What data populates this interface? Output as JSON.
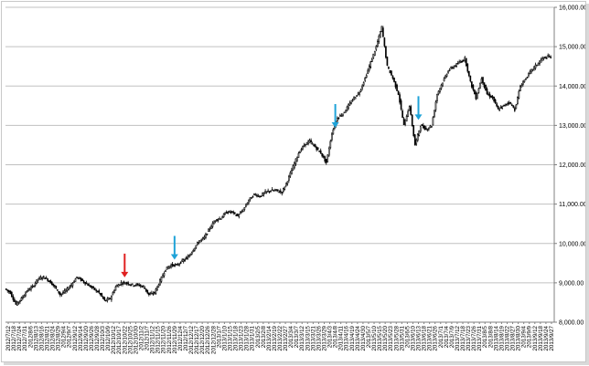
{
  "chart_data": {
    "type": "candlestick",
    "title": "",
    "xlabel": "",
    "ylabel": "",
    "ylim": [
      8000,
      16000
    ],
    "y_axis_position": "right",
    "y_ticks": [
      "8,000.00",
      "9,000.00",
      "10,000.00",
      "11,000.00",
      "12,000.00",
      "13,000.00",
      "14,000.00",
      "15,000.00",
      "16,000.00"
    ],
    "y_tick_values": [
      8000,
      9000,
      10000,
      11000,
      12000,
      13000,
      14000,
      15000,
      16000
    ],
    "grid": "horizontal",
    "x_tick_labels": [
      "2012/7/12",
      "2012/7/18",
      "2012/7/24",
      "2012/7/31",
      "2012/8/6",
      "2012/8/13",
      "2012/8/16",
      "2012/8/21",
      "2012/8/24",
      "2012/8/29",
      "2012/9/4",
      "2012/9/7",
      "2012/9/12",
      "2012/9/14",
      "2012/9/20",
      "2012/9/26",
      "2012/9/28",
      "2012/10/3",
      "2012/10/9",
      "2012/10/12",
      "2012/10/17",
      "2012/10/22",
      "2012/10/25",
      "2012/10/30",
      "2012/11/2",
      "2012/11/7",
      "2012/11/12",
      "2012/11/15",
      "2012/11/20",
      "2012/11/26",
      "2012/11/29",
      "2012/12/4",
      "2012/12/7",
      "2012/12/12",
      "2012/12/17",
      "2012/12/20",
      "2012/12/26",
      "2012/12/28",
      "2013/1/7",
      "2013/1/10",
      "2013/1/15",
      "2013/1/18",
      "2013/1/23",
      "2013/1/28",
      "2013/1/31",
      "2013/2/5",
      "2013/2/8",
      "2013/2/14",
      "2013/2/19",
      "2013/2/22",
      "2013/2/27",
      "2013/3/4",
      "2013/3/7",
      "2013/3/12",
      "2013/3/15",
      "2013/3/21",
      "2013/3/26",
      "2013/3/29",
      "2013/4/3",
      "2013/4/8",
      "2013/4/11",
      "2013/4/16",
      "2013/4/19",
      "2013/4/24",
      "2013/4/30",
      "2013/5/7",
      "2013/5/10",
      "2013/5/15",
      "2013/5/20",
      "2013/5/23",
      "2013/5/28",
      "2013/5/31",
      "2013/6/5",
      "2013/6/10",
      "2013/6/13",
      "2013/6/18",
      "2013/6/21",
      "2013/6/26",
      "2013/7/1",
      "2013/7/4",
      "2013/7/9",
      "2013/7/12",
      "2013/7/18",
      "2013/7/23",
      "2013/7/26",
      "2013/7/31",
      "2013/8/5",
      "2013/8/8",
      "2013/8/14",
      "2013/8/19",
      "2013/8/22",
      "2013/8/27",
      "2013/8/30",
      "2013/9/4",
      "2013/9/9",
      "2013/9/12",
      "2013/9/18",
      "2013/9/24",
      "2013/9/27"
    ],
    "close_path": [
      [
        "2012/7/12",
        8850
      ],
      [
        "2012/7/18",
        8750
      ],
      [
        "2012/7/24",
        8450
      ],
      [
        "2012/7/31",
        8600
      ],
      [
        "2012/8/6",
        8800
      ],
      [
        "2012/8/13",
        8900
      ],
      [
        "2012/8/16",
        9100
      ],
      [
        "2012/8/21",
        9150
      ],
      [
        "2012/8/24",
        9050
      ],
      [
        "2012/8/29",
        8900
      ],
      [
        "2012/9/4",
        8700
      ],
      [
        "2012/9/7",
        8800
      ],
      [
        "2012/9/12",
        8950
      ],
      [
        "2012/9/14",
        9150
      ],
      [
        "2012/9/20",
        9050
      ],
      [
        "2012/9/26",
        8950
      ],
      [
        "2012/9/28",
        8850
      ],
      [
        "2012/10/3",
        8750
      ],
      [
        "2012/10/9",
        8550
      ],
      [
        "2012/10/12",
        8600
      ],
      [
        "2012/10/17",
        8900
      ],
      [
        "2012/10/22",
        9000
      ],
      [
        "2012/10/25",
        9000
      ],
      [
        "2012/10/30",
        8950
      ],
      [
        "2012/11/2",
        8950
      ],
      [
        "2012/11/7",
        8900
      ],
      [
        "2012/11/12",
        8700
      ],
      [
        "2012/11/15",
        8750
      ],
      [
        "2012/11/20",
        9050
      ],
      [
        "2012/11/26",
        9350
      ],
      [
        "2012/11/29",
        9450
      ],
      [
        "2012/12/4",
        9450
      ],
      [
        "2012/12/7",
        9550
      ],
      [
        "2012/12/12",
        9650
      ],
      [
        "2012/12/17",
        9850
      ],
      [
        "2012/12/20",
        10050
      ],
      [
        "2012/12/26",
        10150
      ],
      [
        "2012/12/28",
        10400
      ],
      [
        "2013/1/7",
        10600
      ],
      [
        "2013/1/10",
        10650
      ],
      [
        "2013/1/15",
        10800
      ],
      [
        "2013/1/18",
        10800
      ],
      [
        "2013/1/23",
        10700
      ],
      [
        "2013/1/28",
        10850
      ],
      [
        "2013/1/31",
        11100
      ],
      [
        "2013/2/5",
        11250
      ],
      [
        "2013/2/8",
        11200
      ],
      [
        "2013/2/14",
        11300
      ],
      [
        "2013/2/19",
        11350
      ],
      [
        "2013/2/22",
        11350
      ],
      [
        "2013/2/27",
        11300
      ],
      [
        "2013/3/4",
        11600
      ],
      [
        "2013/3/7",
        11950
      ],
      [
        "2013/3/12",
        12300
      ],
      [
        "2013/3/15",
        12500
      ],
      [
        "2013/3/21",
        12600
      ],
      [
        "2013/3/26",
        12450
      ],
      [
        "2013/3/29",
        12300
      ],
      [
        "2013/4/3",
        12050
      ],
      [
        "2013/4/8",
        12800
      ],
      [
        "2013/4/11",
        13200
      ],
      [
        "2013/4/16",
        13300
      ],
      [
        "2013/4/19",
        13500
      ],
      [
        "2013/4/24",
        13700
      ],
      [
        "2013/4/30",
        13850
      ],
      [
        "2013/5/7",
        14200
      ],
      [
        "2013/5/10",
        14600
      ],
      [
        "2013/5/15",
        15000
      ],
      [
        "2013/5/20",
        15500
      ],
      [
        "2013/5/23",
        14500
      ],
      [
        "2013/5/28",
        14200
      ],
      [
        "2013/5/31",
        13800
      ],
      [
        "2013/6/5",
        13000
      ],
      [
        "2013/6/10",
        13500
      ],
      [
        "2013/6/13",
        12500
      ],
      [
        "2013/6/18",
        13000
      ],
      [
        "2013/6/21",
        12900
      ],
      [
        "2013/6/26",
        13000
      ],
      [
        "2013/7/1",
        13800
      ],
      [
        "2013/7/4",
        14100
      ],
      [
        "2013/7/9",
        14400
      ],
      [
        "2013/7/12",
        14500
      ],
      [
        "2013/7/18",
        14600
      ],
      [
        "2013/7/23",
        14700
      ],
      [
        "2013/7/26",
        14100
      ],
      [
        "2013/7/31",
        13700
      ],
      [
        "2013/8/5",
        14200
      ],
      [
        "2013/8/8",
        13800
      ],
      [
        "2013/8/14",
        13700
      ],
      [
        "2013/8/19",
        13400
      ],
      [
        "2013/8/22",
        13500
      ],
      [
        "2013/8/27",
        13600
      ],
      [
        "2013/8/30",
        13400
      ],
      [
        "2013/9/4",
        14000
      ],
      [
        "2013/9/9",
        14200
      ],
      [
        "2013/9/12",
        14400
      ],
      [
        "2013/9/18",
        14550
      ],
      [
        "2013/9/24",
        14700
      ],
      [
        "2013/9/27",
        14750
      ]
    ],
    "annotations": [
      {
        "type": "arrow-down",
        "color": "#e02020",
        "x": "2012/10/22",
        "y": 9000
      },
      {
        "type": "arrow-down",
        "color": "#1fa3d8",
        "x": "2012/11/29",
        "y": 9450
      },
      {
        "type": "arrow-down",
        "color": "#1fa3d8",
        "x": "2013/4/8",
        "y": 12800
      },
      {
        "type": "arrow-down",
        "color": "#1fa3d8",
        "x": "2013/6/13",
        "y": 13000
      }
    ],
    "colors": {
      "up": "#ffffff",
      "down": "#000000",
      "outline": "#000000",
      "grid": "#c0c0c0"
    }
  }
}
